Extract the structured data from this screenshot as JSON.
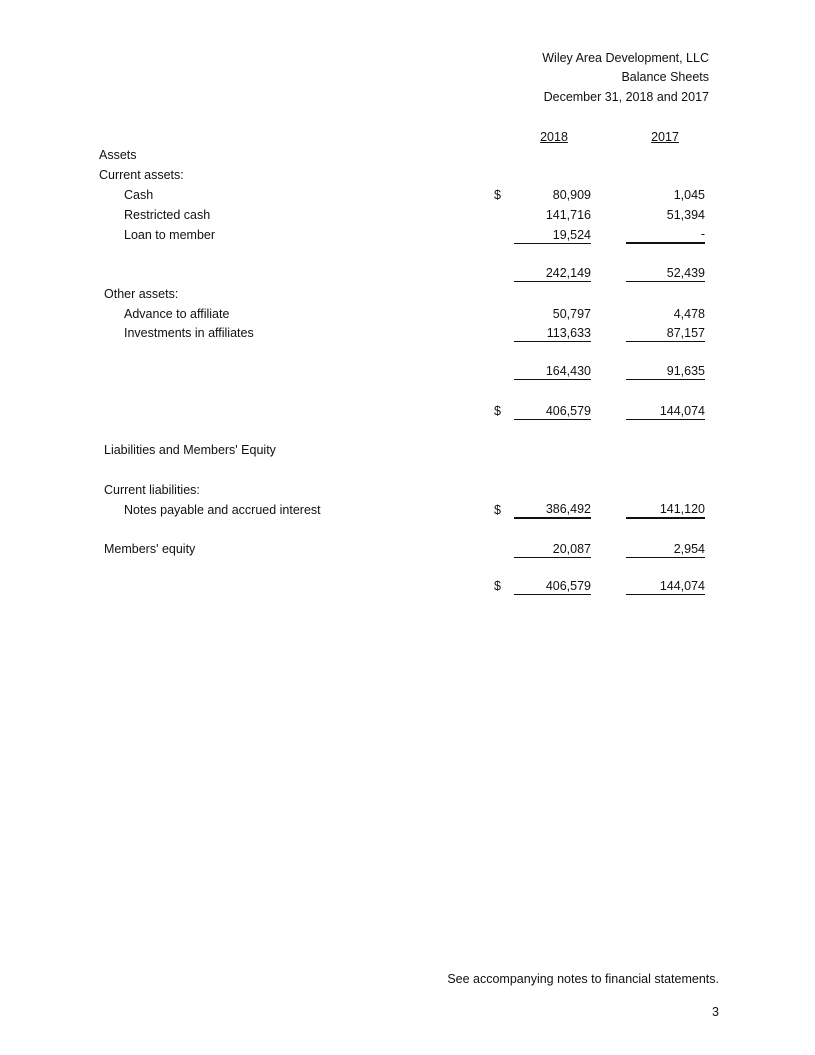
{
  "header": {
    "company": "Wiley Area Development, LLC",
    "title": "Balance Sheets",
    "date": "December 31, 2018 and 2017"
  },
  "columns": [
    "2018",
    "2017"
  ],
  "assets": {
    "heading": "Assets",
    "current_heading": "Current assets:",
    "cash": {
      "label": "Cash",
      "currency": "$",
      "y2018": "80,909",
      "y2017": "1,045"
    },
    "restricted_cash": {
      "label": "Restricted cash",
      "y2018": "141,716",
      "y2017": "51,394"
    },
    "loan_to_member": {
      "label": "Loan to member",
      "y2018": "19,524",
      "y2017": "-"
    },
    "current_total": {
      "y2018": "242,149",
      "y2017": "52,439"
    },
    "other_heading": "Other assets:",
    "advance": {
      "label": "Advance to affiliate",
      "y2018": "50,797",
      "y2017": "4,478"
    },
    "investments": {
      "label": "Investments in affiliates",
      "y2018": "113,633",
      "y2017": "87,157"
    },
    "other_total": {
      "y2018": "164,430",
      "y2017": "91,635"
    },
    "total": {
      "currency": "$",
      "y2018": "406,579",
      "y2017": "144,074"
    }
  },
  "liabilities": {
    "heading": "Liabilities and Members' Equity",
    "current_heading": "Current liabilities:",
    "notes": {
      "label": "Notes payable and accrued interest",
      "currency": "$",
      "y2018": "386,492",
      "y2017": "141,120"
    },
    "equity": {
      "label": "Members' equity",
      "y2018": "20,087",
      "y2017": "2,954"
    },
    "total": {
      "currency": "$",
      "y2018": "406,579",
      "y2017": "144,074"
    }
  },
  "footer": {
    "note": "See accompanying notes to financial statements.",
    "page": "3"
  }
}
